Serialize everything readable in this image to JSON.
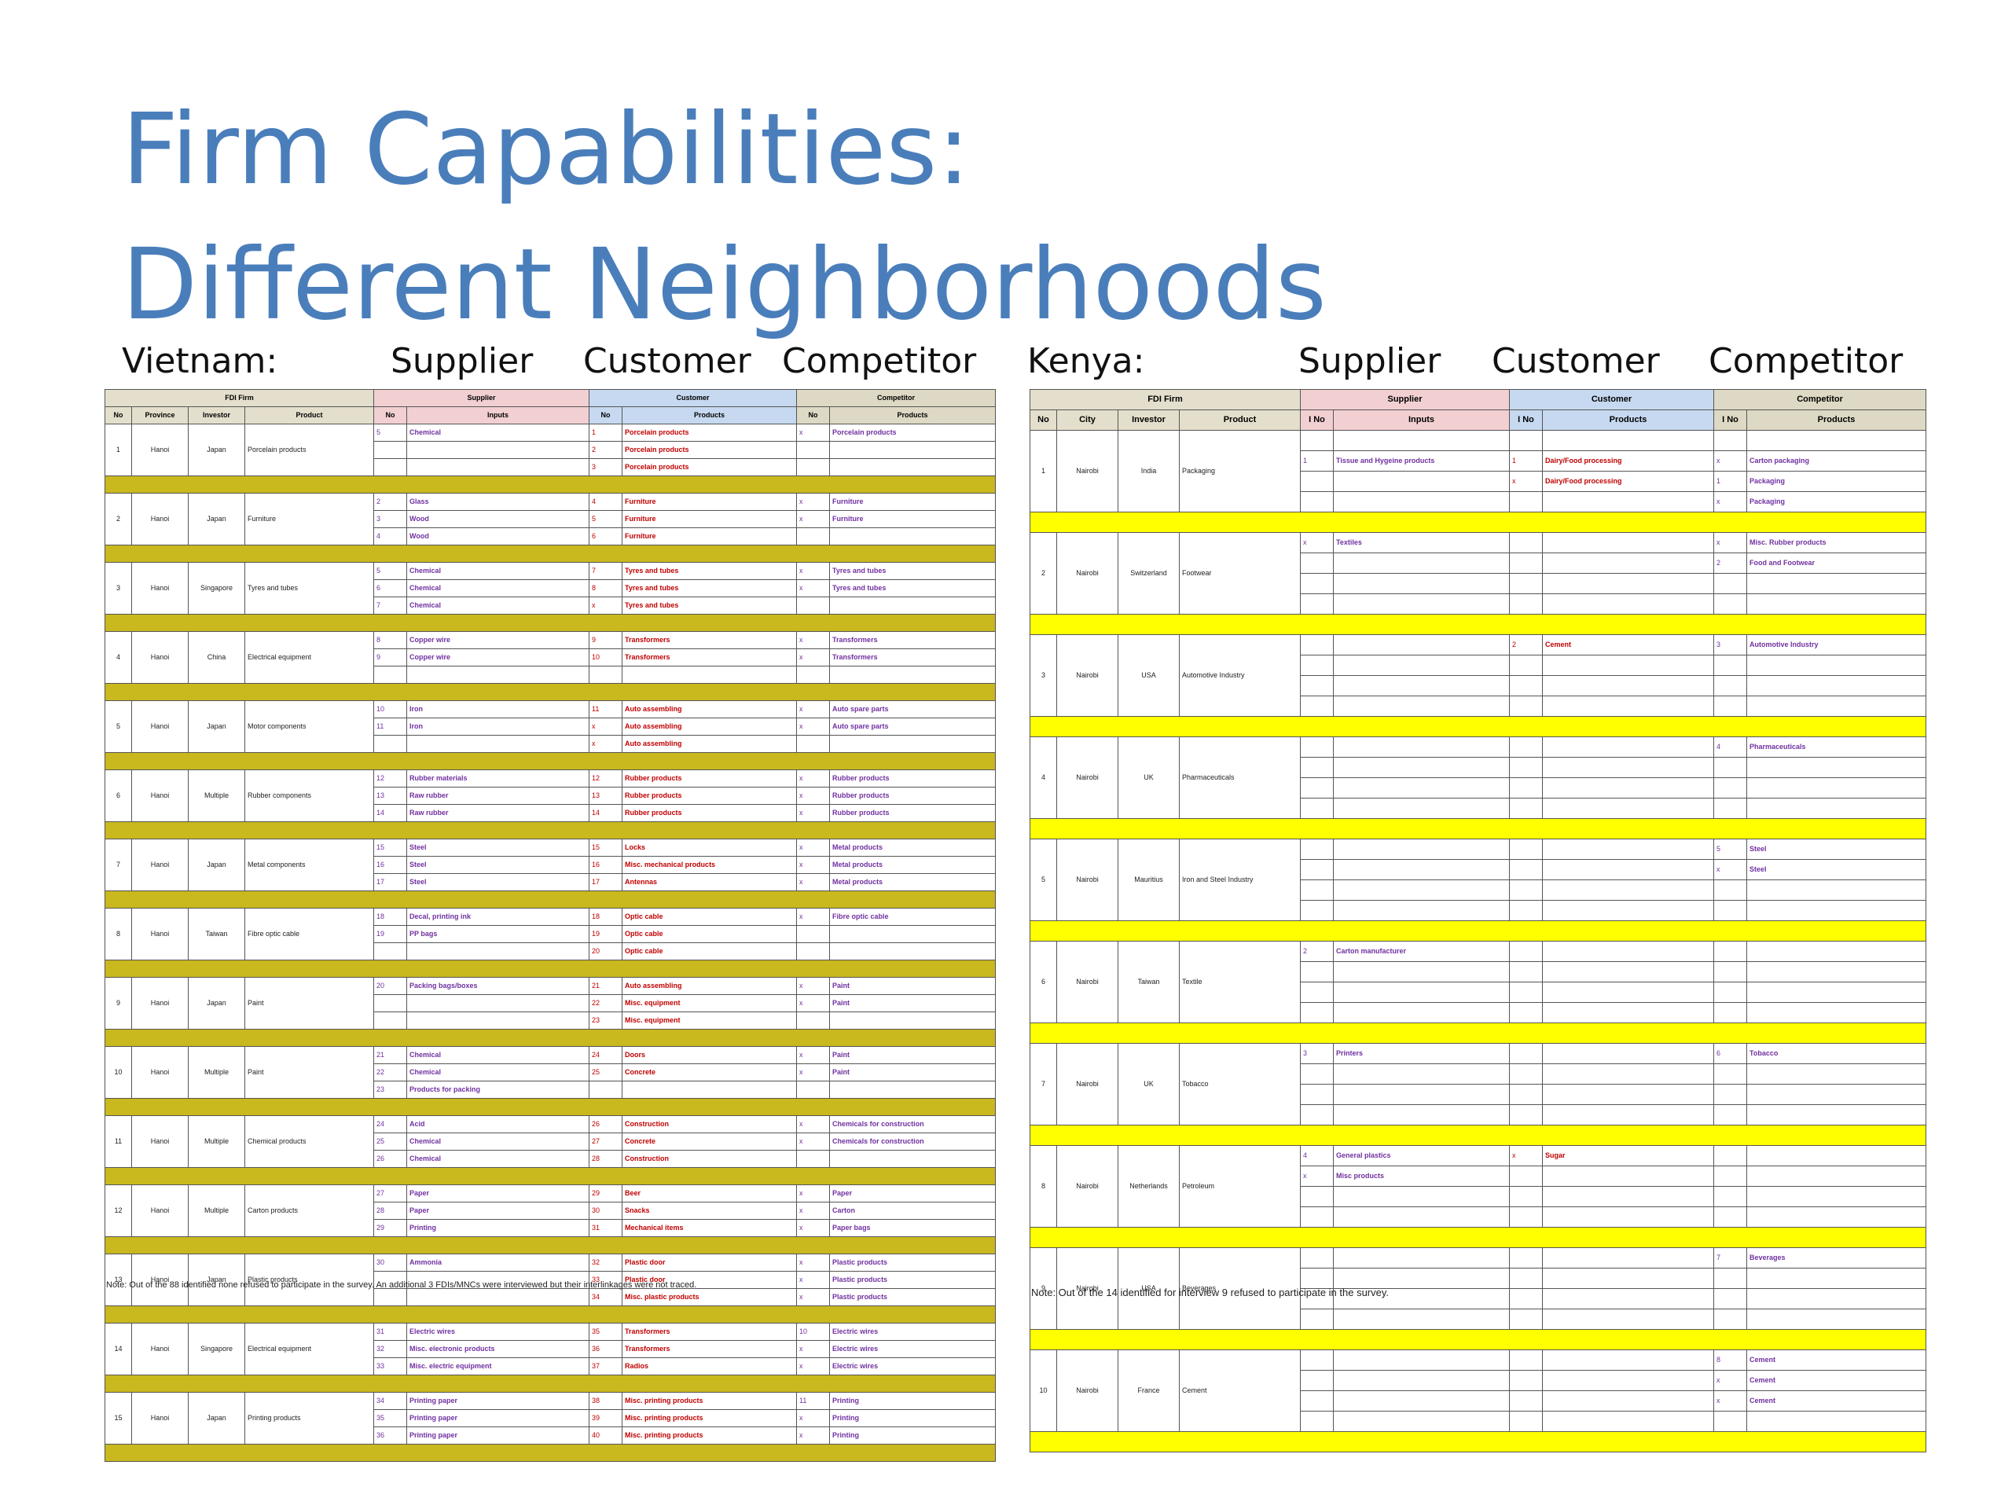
{
  "slide": {
    "title_line1": "Firm Capabilities:",
    "title_line2": "Different Neighborhoods",
    "labels": {
      "vietnam": "Vietnam:",
      "vn_supplier": "Supplier",
      "vn_customer": "Customer",
      "vn_competitor": "Competitor",
      "kenya": "Kenya:",
      "ke_supplier": "Supplier",
      "ke_customer": "Customer",
      "ke_competitor": "Competitor"
    }
  },
  "vietnam": {
    "groups": {
      "fdi": "FDI Firm",
      "supplier": "Supplier",
      "customer": "Customer",
      "competitor": "Competitor"
    },
    "columns": {
      "no": "No",
      "province": "Province",
      "investor": "Investor",
      "product": "Product",
      "s_no": "No",
      "inputs": "Inputs",
      "c_no": "No",
      "c_products": "Products",
      "k_no": "No",
      "k_products": "Products"
    },
    "firms": [
      {
        "no": "1",
        "province": "Hanoi",
        "investor": "Japan",
        "product": "Porcelain products",
        "rows": [
          [
            "5",
            "Chemical",
            "1",
            "Porcelain products",
            "x",
            "Porcelain products"
          ],
          [
            "",
            "",
            "2",
            "Porcelain products",
            "",
            ""
          ],
          [
            "",
            "",
            "3",
            "Porcelain products",
            "",
            ""
          ]
        ]
      },
      {
        "no": "2",
        "province": "Hanoi",
        "investor": "Japan",
        "product": "Furniture",
        "rows": [
          [
            "2",
            "Glass",
            "4",
            "Furniture",
            "x",
            "Furniture"
          ],
          [
            "3",
            "Wood",
            "5",
            "Furniture",
            "x",
            "Furniture"
          ],
          [
            "4",
            "Wood",
            "6",
            "Furniture",
            "",
            ""
          ]
        ]
      },
      {
        "no": "3",
        "province": "Hanoi",
        "investor": "Singapore",
        "product": "Tyres and tubes",
        "rows": [
          [
            "5",
            "Chemical",
            "7",
            "Tyres and tubes",
            "x",
            "Tyres and tubes"
          ],
          [
            "6",
            "Chemical",
            "8",
            "Tyres and tubes",
            "x",
            "Tyres and tubes"
          ],
          [
            "7",
            "Chemical",
            "x",
            "Tyres and tubes",
            "",
            ""
          ]
        ]
      },
      {
        "no": "4",
        "province": "Hanoi",
        "investor": "China",
        "product": "Electrical equipment",
        "rows": [
          [
            "8",
            "Copper wire",
            "9",
            "Transformers",
            "x",
            "Transformers"
          ],
          [
            "9",
            "Copper wire",
            "10",
            "Transformers",
            "x",
            "Transformers"
          ],
          [
            "",
            "",
            "",
            "",
            "",
            ""
          ]
        ]
      },
      {
        "no": "5",
        "province": "Hanoi",
        "investor": "Japan",
        "product": "Motor components",
        "rows": [
          [
            "10",
            "Iron",
            "11",
            "Auto assembling",
            "x",
            "Auto spare parts"
          ],
          [
            "11",
            "Iron",
            "x",
            "Auto assembling",
            "x",
            "Auto spare parts"
          ],
          [
            "",
            "",
            "x",
            "Auto assembling",
            "",
            ""
          ]
        ]
      },
      {
        "no": "6",
        "province": "Hanoi",
        "investor": "Multiple",
        "product": "Rubber components",
        "rows": [
          [
            "12",
            "Rubber materials",
            "12",
            "Rubber products",
            "x",
            "Rubber products"
          ],
          [
            "13",
            "Raw rubber",
            "13",
            "Rubber products",
            "x",
            "Rubber products"
          ],
          [
            "14",
            "Raw rubber",
            "14",
            "Rubber products",
            "x",
            "Rubber products"
          ]
        ]
      },
      {
        "no": "7",
        "province": "Hanoi",
        "investor": "Japan",
        "product": "Metal components",
        "rows": [
          [
            "15",
            "Steel",
            "15",
            "Locks",
            "x",
            "Metal products"
          ],
          [
            "16",
            "Steel",
            "16",
            "Misc. mechanical products",
            "x",
            "Metal products"
          ],
          [
            "17",
            "Steel",
            "17",
            "Antennas",
            "x",
            "Metal products"
          ]
        ]
      },
      {
        "no": "8",
        "province": "Hanoi",
        "investor": "Taiwan",
        "product": "Fibre optic cable",
        "rows": [
          [
            "18",
            "Decal, printing ink",
            "18",
            "Optic cable",
            "x",
            "Fibre optic cable"
          ],
          [
            "19",
            "PP bags",
            "19",
            "Optic cable",
            "",
            ""
          ],
          [
            "",
            "",
            "20",
            "Optic cable",
            "",
            ""
          ]
        ]
      },
      {
        "no": "9",
        "province": "Hanoi",
        "investor": "Japan",
        "product": "Paint",
        "rows": [
          [
            "20",
            "Packing bags/boxes",
            "21",
            "Auto assembling",
            "x",
            "Paint"
          ],
          [
            "",
            "",
            "22",
            "Misc. equipment",
            "x",
            "Paint"
          ],
          [
            "",
            "",
            "23",
            "Misc. equipment",
            "",
            ""
          ]
        ]
      },
      {
        "no": "10",
        "province": "Hanoi",
        "investor": "Multiple",
        "product": "Paint",
        "rows": [
          [
            "21",
            "Chemical",
            "24",
            "Doors",
            "x",
            "Paint"
          ],
          [
            "22",
            "Chemical",
            "25",
            "Concrete",
            "x",
            "Paint"
          ],
          [
            "23",
            "Products for packing",
            "",
            "",
            "",
            ""
          ]
        ]
      },
      {
        "no": "11",
        "province": "Hanoi",
        "investor": "Multiple",
        "product": "Chemical products",
        "rows": [
          [
            "24",
            "Acid",
            "26",
            "Construction",
            "x",
            "Chemicals for construction"
          ],
          [
            "25",
            "Chemical",
            "27",
            "Concrete",
            "x",
            "Chemicals for construction"
          ],
          [
            "26",
            "Chemical",
            "28",
            "Construction",
            "",
            ""
          ]
        ]
      },
      {
        "no": "12",
        "province": "Hanoi",
        "investor": "Multiple",
        "product": "Carton products",
        "rows": [
          [
            "27",
            "Paper",
            "29",
            "Beer",
            "x",
            "Paper"
          ],
          [
            "28",
            "Paper",
            "30",
            "Snacks",
            "x",
            "Carton"
          ],
          [
            "29",
            "Printing",
            "31",
            "Mechanical items",
            "x",
            "Paper bags"
          ]
        ]
      },
      {
        "no": "13",
        "province": "Hanoi",
        "investor": "Japan",
        "product": "Plastic products",
        "rows": [
          [
            "30",
            "Ammonia",
            "32",
            "Plastic door",
            "x",
            "Plastic products"
          ],
          [
            "",
            "",
            "33",
            "Plastic door",
            "x",
            "Plastic products"
          ],
          [
            "",
            "",
            "34",
            "Misc. plastic products",
            "x",
            "Plastic products"
          ]
        ]
      },
      {
        "no": "14",
        "province": "Hanoi",
        "investor": "Singapore",
        "product": "Electrical equipment",
        "rows": [
          [
            "31",
            "Electric wires",
            "35",
            "Transformers",
            "10",
            "Electric wires"
          ],
          [
            "32",
            "Misc. electronic products",
            "36",
            "Transformers",
            "x",
            "Electric wires"
          ],
          [
            "33",
            "Misc. electric equipment",
            "37",
            "Radios",
            "x",
            "Electric wires"
          ]
        ]
      },
      {
        "no": "15",
        "province": "Hanoi",
        "investor": "Japan",
        "product": "Printing products",
        "rows": [
          [
            "34",
            "Printing paper",
            "38",
            "Misc. printing products",
            "11",
            "Printing"
          ],
          [
            "35",
            "Printing paper",
            "39",
            "Misc. printing products",
            "x",
            "Printing"
          ],
          [
            "36",
            "Printing paper",
            "40",
            "Misc. printing products",
            "x",
            "Printing"
          ]
        ]
      }
    ],
    "note": "Note: Out of the 88 identified none refused to participate in the survey. An additional 3 FDIs/MNCs were interviewed but their interlinkages were not traced."
  },
  "kenya": {
    "groups": {
      "fdi": "FDI Firm",
      "supplier": "Supplier",
      "customer": "Customer",
      "competitor": "Competitor"
    },
    "columns": {
      "no": "No",
      "city": "City",
      "investor": "Investor",
      "product": "Product",
      "s_no": "I No",
      "inputs": "Inputs",
      "c_no": "I No",
      "c_products": "Products",
      "k_no": "I No",
      "k_products": "Products"
    },
    "firms": [
      {
        "no": "1",
        "city": "Nairobi",
        "investor": "India",
        "product": "Packaging",
        "rows": [
          [
            "",
            "",
            "",
            "",
            "",
            ""
          ],
          [
            "1",
            "Tissue and Hygeine products",
            "1",
            "Dairy/Food processing",
            "x",
            "Carton packaging"
          ],
          [
            "",
            "",
            "x",
            "Dairy/Food processing",
            "1",
            "Packaging"
          ],
          [
            "",
            "",
            "",
            "",
            "x",
            "Packaging"
          ]
        ]
      },
      {
        "no": "2",
        "city": "Nairobi",
        "investor": "Switzerland",
        "product": "Footwear",
        "rows": [
          [
            "x",
            "Textiles",
            "",
            "",
            "x",
            "Misc. Rubber products"
          ],
          [
            "",
            "",
            "",
            "",
            "2",
            "Food and Footwear"
          ],
          [
            "",
            "",
            "",
            "",
            "",
            " "
          ],
          [
            "",
            "",
            "",
            "",
            "",
            ""
          ]
        ]
      },
      {
        "no": "3",
        "city": "Nairobi",
        "investor": "USA",
        "product": "Automotive Industry",
        "rows": [
          [
            "",
            "",
            "2",
            "Cement",
            "3",
            "Automotive Industry"
          ],
          [
            "",
            "",
            "",
            "",
            "",
            ""
          ],
          [
            "",
            "",
            "",
            "",
            "",
            ""
          ],
          [
            "",
            "",
            "",
            "",
            "",
            ""
          ]
        ]
      },
      {
        "no": "4",
        "city": "Nairobi",
        "investor": "UK",
        "product": "Pharmaceuticals",
        "rows": [
          [
            "",
            "",
            "",
            "",
            "4",
            "Pharmaceuticals"
          ],
          [
            "",
            "",
            "",
            "",
            "",
            ""
          ],
          [
            "",
            "",
            "",
            "",
            "",
            ""
          ],
          [
            "",
            "",
            "",
            "",
            "",
            ""
          ]
        ]
      },
      {
        "no": "5",
        "city": "Nairobi",
        "investor": "Mauritius",
        "product": "Iron and Steel Industry",
        "rows": [
          [
            "",
            "",
            "",
            "",
            "5",
            "Steel"
          ],
          [
            "",
            "",
            "",
            "",
            "x",
            "Steel"
          ],
          [
            "",
            "",
            "",
            "",
            "",
            ""
          ],
          [
            "",
            "",
            "",
            "",
            "",
            ""
          ]
        ]
      },
      {
        "no": "6",
        "city": "Nairobi",
        "investor": "Taiwan",
        "product": "Textile",
        "rows": [
          [
            "2",
            "Carton manufacturer",
            "",
            "",
            "",
            ""
          ],
          [
            "",
            "",
            "",
            "",
            "",
            ""
          ],
          [
            "",
            "",
            "",
            "",
            "",
            ""
          ],
          [
            "",
            "",
            "",
            "",
            "",
            ""
          ]
        ]
      },
      {
        "no": "7",
        "city": "Nairobi",
        "investor": "UK",
        "product": "Tobacco",
        "rows": [
          [
            "3",
            "Printers",
            "",
            "",
            "6",
            "Tobacco"
          ],
          [
            "",
            "",
            "",
            "",
            "",
            ""
          ],
          [
            "",
            "",
            "",
            "",
            "",
            ""
          ],
          [
            "",
            "",
            "",
            "",
            "",
            ""
          ]
        ]
      },
      {
        "no": "8",
        "city": "Nairobi",
        "investor": "Netherlands",
        "product": "Petroleum",
        "rows": [
          [
            "4",
            "General plastics",
            "x",
            "Sugar",
            "",
            ""
          ],
          [
            "x",
            "Misc products",
            "",
            "",
            "",
            ""
          ],
          [
            "",
            "",
            "",
            "",
            "",
            ""
          ],
          [
            "",
            "",
            "",
            "",
            "",
            ""
          ]
        ]
      },
      {
        "no": "9",
        "city": "Nairobi",
        "investor": "USA",
        "product": "Beverages",
        "rows": [
          [
            "",
            "",
            "",
            "",
            "7",
            "Beverages"
          ],
          [
            "",
            "",
            "",
            "",
            "",
            ""
          ],
          [
            "",
            "",
            "",
            "",
            "",
            ""
          ],
          [
            "",
            "",
            "",
            "",
            "",
            ""
          ]
        ]
      },
      {
        "no": "10",
        "city": "Nairobi",
        "investor": "France",
        "product": "Cement",
        "rows": [
          [
            "",
            "",
            "",
            "",
            "8",
            "Cement"
          ],
          [
            "",
            "",
            "",
            "",
            "x",
            "Cement"
          ],
          [
            "",
            "",
            "",
            "",
            "x",
            "Cement"
          ],
          [
            "",
            "",
            "",
            "",
            "",
            ""
          ]
        ]
      }
    ],
    "note": "Note: Out of the 14 identified for interview 9 refused to participate in the survey."
  },
  "colors": {
    "title": "#4A7EBB",
    "separator_yellow": "#FFFF00",
    "supplier_header": "#F2D0D2",
    "customer_header": "#C6D9F0",
    "customer_text": "#C00000",
    "supplier_text": "#7030A0"
  }
}
